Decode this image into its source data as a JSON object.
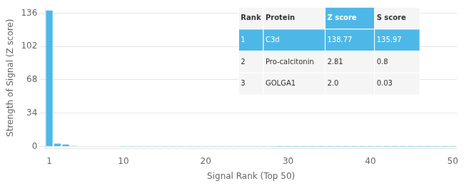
{
  "chart_data": {
    "type": "bar",
    "x": [
      1,
      2,
      3,
      4,
      5,
      6,
      7,
      8,
      9,
      10,
      11,
      12,
      13,
      14,
      15,
      16,
      17,
      18,
      19,
      20,
      21,
      22,
      23,
      24,
      25,
      26,
      27,
      28,
      29,
      30,
      31,
      32,
      33,
      34,
      35,
      36,
      37,
      38,
      39,
      40,
      41,
      42,
      43,
      44,
      45,
      46,
      47,
      48,
      49,
      50
    ],
    "values": [
      138.77,
      2.81,
      2.0,
      0.5,
      0.4,
      0.35,
      0.3,
      0.28,
      0.25,
      0.22,
      0.2,
      0.18,
      0.17,
      0.16,
      0.15,
      0.14,
      0.13,
      0.12,
      0.11,
      0.1,
      0.09,
      0.09,
      0.08,
      0.08,
      0.07,
      0.07,
      0.06,
      0.06,
      0.05,
      0.05,
      0.05,
      0.04,
      0.04,
      0.04,
      0.03,
      0.03,
      0.03,
      0.03,
      0.02,
      0.02,
      0.02,
      0.02,
      0.02,
      0.01,
      0.01,
      0.01,
      0.01,
      0.01,
      0.01,
      0.01
    ],
    "color": "#4db8e8",
    "xlabel": "Signal Rank (Top 50)",
    "ylabel": "Strength of Signal (Z score)",
    "xlim": [
      0.5,
      50.5
    ],
    "ylim": [
      -2,
      142
    ],
    "xticks": [
      1,
      10,
      20,
      30,
      40,
      50
    ],
    "yticks": [
      0,
      34,
      68,
      102,
      136
    ],
    "grid": "y",
    "table": [
      [
        "Rank",
        "Protein",
        "Z score",
        "S score"
      ],
      [
        "1",
        "C3d",
        "138.77",
        "135.97"
      ],
      [
        "2",
        "Pro-calcitonin",
        "2.81",
        "0.8"
      ],
      [
        "3",
        "GOLGA1",
        "2.0",
        "0.03"
      ]
    ]
  }
}
